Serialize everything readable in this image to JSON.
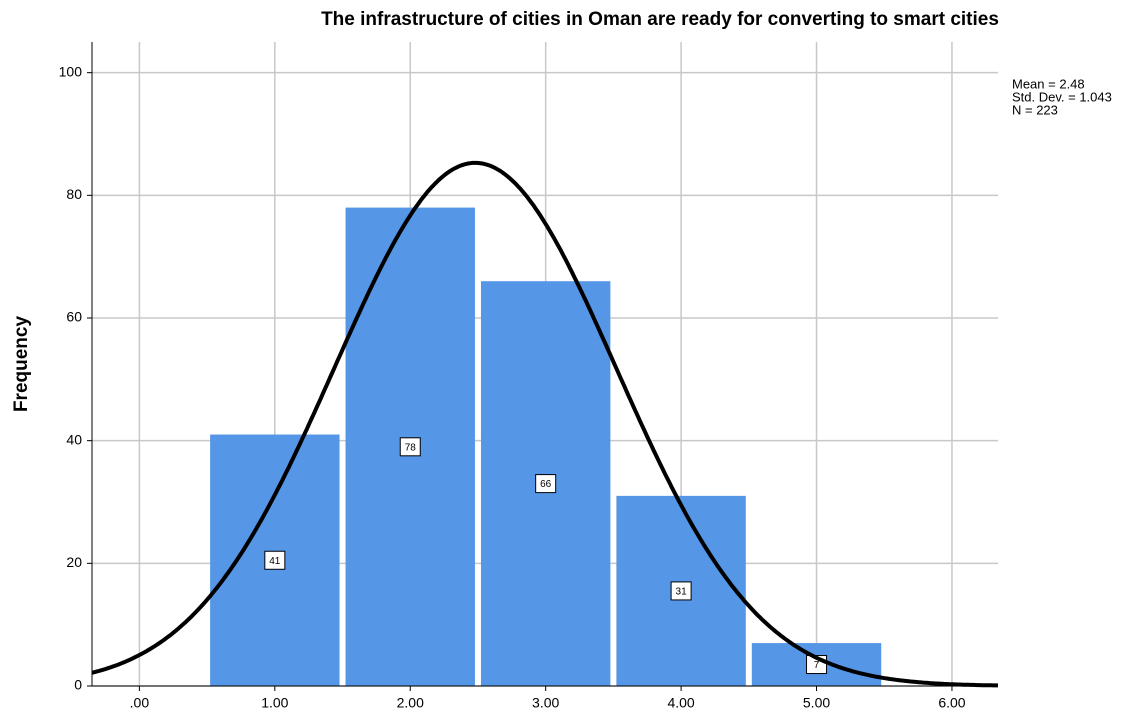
{
  "chart_data": {
    "type": "histogram",
    "title": "The infrastructure of cities in Oman are ready for converting to smart cities",
    "y_label": "Frequency",
    "bins": [
      0.5,
      1.5,
      2.5,
      3.5,
      4.5,
      5.5
    ],
    "counts": [
      41,
      78,
      66,
      31,
      7
    ],
    "color": "#5596e6",
    "xlim": [
      -0.35,
      6.34
    ],
    "ylim": [
      0,
      105
    ],
    "xticks": [
      {
        "value": 0,
        "label": ".00"
      },
      {
        "value": 1,
        "label": "1.00"
      },
      {
        "value": 2,
        "label": "2.00"
      },
      {
        "value": 3,
        "label": "3.00"
      },
      {
        "value": 4,
        "label": "4.00"
      },
      {
        "value": 5,
        "label": "5.00"
      },
      {
        "value": 6,
        "label": "6.00"
      }
    ],
    "yticks": [
      0,
      20,
      40,
      60,
      80,
      100
    ],
    "grid": true,
    "stats": {
      "mean": {
        "value": 2.48,
        "label": "Mean = 2.48"
      },
      "sd": {
        "value": 1.043,
        "label": "Std. Dev. = 1.043"
      },
      "n": {
        "value": 223,
        "label": "N = 223"
      }
    }
  }
}
